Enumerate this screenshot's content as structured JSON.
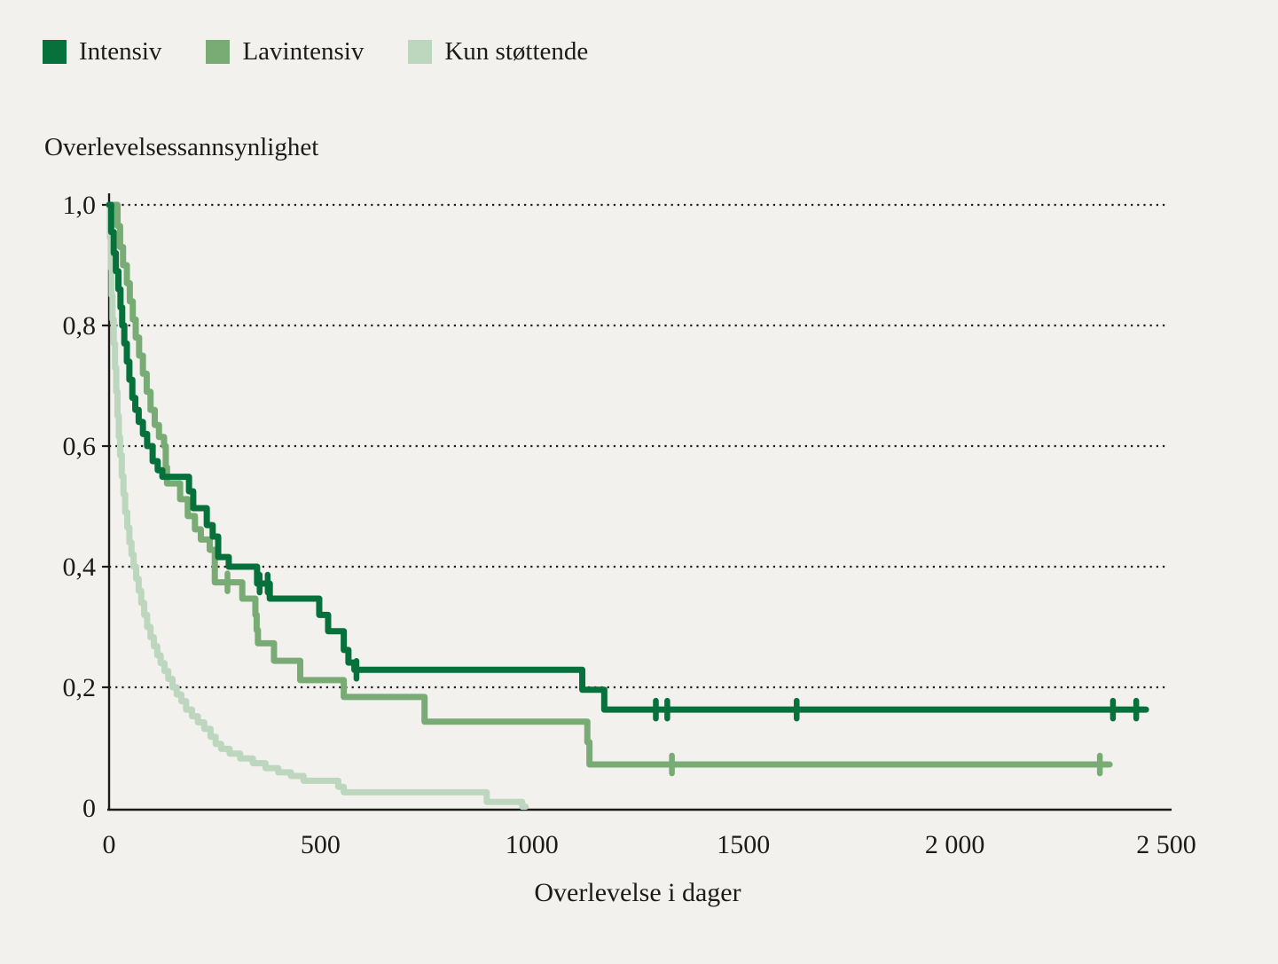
{
  "page": {
    "background": "#f2f1ee",
    "text_color": "#1b1b19"
  },
  "legend": {
    "items": [
      {
        "label": "Intensiv",
        "color": "#06713a"
      },
      {
        "label": "Lavintensiv",
        "color": "#79ab75"
      },
      {
        "label": "Kun støttende",
        "color": "#bcd7bd"
      }
    ]
  },
  "chart_data": {
    "type": "line",
    "subtype": "kaplan-meier-step-curve",
    "title": "Overlevelsessannsynlighet",
    "xlabel": "Overlevelse i dager",
    "ylabel": "Overlevelsessannsynlighet",
    "xlim": [
      0,
      2500
    ],
    "ylim": [
      0,
      1
    ],
    "grid": "horizontal-dotted",
    "legend_position": "top-left",
    "axis_color": "#1b1b19",
    "x_ticks": [
      {
        "value": 0,
        "label": "0"
      },
      {
        "value": 500,
        "label": "500"
      },
      {
        "value": 1000,
        "label": "1000"
      },
      {
        "value": 1500,
        "label": "1500"
      },
      {
        "value": 2000,
        "label": "2 000"
      },
      {
        "value": 2500,
        "label": "2 500"
      }
    ],
    "y_ticks": [
      {
        "value": 1.0,
        "label": "1,0"
      },
      {
        "value": 0.8,
        "label": "0,8"
      },
      {
        "value": 0.6,
        "label": "0,6"
      },
      {
        "value": 0.4,
        "label": "0,4"
      },
      {
        "value": 0.2,
        "label": "0,2"
      },
      {
        "value": 0,
        "label": "0"
      }
    ],
    "series": [
      {
        "name": "Kun støttende",
        "color": "#bcd7bd",
        "end_day": 985,
        "points": [
          [
            0,
            1.0
          ],
          [
            2,
            0.945
          ],
          [
            4,
            0.895
          ],
          [
            6,
            0.85
          ],
          [
            8,
            0.81
          ],
          [
            11,
            0.77
          ],
          [
            14,
            0.73
          ],
          [
            17,
            0.69
          ],
          [
            20,
            0.65
          ],
          [
            23,
            0.615
          ],
          [
            26,
            0.585
          ],
          [
            30,
            0.55
          ],
          [
            34,
            0.52
          ],
          [
            38,
            0.49
          ],
          [
            43,
            0.465
          ],
          [
            48,
            0.44
          ],
          [
            53,
            0.42
          ],
          [
            58,
            0.4
          ],
          [
            64,
            0.38
          ],
          [
            70,
            0.36
          ],
          [
            76,
            0.34
          ],
          [
            83,
            0.32
          ],
          [
            90,
            0.3
          ],
          [
            98,
            0.283
          ],
          [
            106,
            0.268
          ],
          [
            114,
            0.253
          ],
          [
            122,
            0.24
          ],
          [
            131,
            0.227
          ],
          [
            140,
            0.214
          ],
          [
            150,
            0.2
          ],
          [
            160,
            0.188
          ],
          [
            171,
            0.177
          ],
          [
            182,
            0.163
          ],
          [
            196,
            0.152
          ],
          [
            210,
            0.142
          ],
          [
            225,
            0.131
          ],
          [
            240,
            0.118
          ],
          [
            252,
            0.106
          ],
          [
            265,
            0.098
          ],
          [
            285,
            0.09
          ],
          [
            310,
            0.082
          ],
          [
            340,
            0.074
          ],
          [
            370,
            0.066
          ],
          [
            400,
            0.059
          ],
          [
            430,
            0.053
          ],
          [
            460,
            0.045
          ],
          [
            542,
            0.035
          ],
          [
            555,
            0.026
          ],
          [
            893,
            0.01
          ],
          [
            977,
            0.002
          ]
        ],
        "censor_marks": []
      },
      {
        "name": "Lavintensiv",
        "color": "#79ab75",
        "end_day": 2366,
        "points": [
          [
            0,
            1.0
          ],
          [
            20,
            0.965
          ],
          [
            26,
            0.93
          ],
          [
            33,
            0.9
          ],
          [
            42,
            0.87
          ],
          [
            49,
            0.84
          ],
          [
            56,
            0.81
          ],
          [
            63,
            0.78
          ],
          [
            71,
            0.75
          ],
          [
            80,
            0.72
          ],
          [
            89,
            0.69
          ],
          [
            98,
            0.66
          ],
          [
            108,
            0.635
          ],
          [
            118,
            0.615
          ],
          [
            130,
            0.6
          ],
          [
            134,
            0.565
          ],
          [
            137,
            0.538
          ],
          [
            168,
            0.512
          ],
          [
            186,
            0.484
          ],
          [
            203,
            0.462
          ],
          [
            217,
            0.445
          ],
          [
            238,
            0.428
          ],
          [
            250,
            0.374
          ],
          [
            315,
            0.347
          ],
          [
            346,
            0.32
          ],
          [
            349,
            0.295
          ],
          [
            352,
            0.273
          ],
          [
            390,
            0.244
          ],
          [
            452,
            0.212
          ],
          [
            555,
            0.184
          ],
          [
            746,
            0.143
          ],
          [
            1131,
            0.109
          ],
          [
            1136,
            0.072
          ]
        ],
        "censor_marks": [
          [
            280,
            0.374
          ],
          [
            1331,
            0.072
          ],
          [
            2343,
            0.072
          ]
        ]
      },
      {
        "name": "Intensiv",
        "color": "#06713a",
        "end_day": 2452,
        "points": [
          [
            0,
            1.0
          ],
          [
            5,
            0.955
          ],
          [
            11,
            0.92
          ],
          [
            16,
            0.89
          ],
          [
            22,
            0.86
          ],
          [
            27,
            0.83
          ],
          [
            31,
            0.8
          ],
          [
            36,
            0.77
          ],
          [
            42,
            0.74
          ],
          [
            48,
            0.71
          ],
          [
            55,
            0.68
          ],
          [
            62,
            0.66
          ],
          [
            70,
            0.64
          ],
          [
            80,
            0.62
          ],
          [
            90,
            0.6
          ],
          [
            103,
            0.575
          ],
          [
            115,
            0.56
          ],
          [
            126,
            0.549
          ],
          [
            189,
            0.525
          ],
          [
            199,
            0.497
          ],
          [
            231,
            0.469
          ],
          [
            245,
            0.45
          ],
          [
            258,
            0.416
          ],
          [
            283,
            0.4
          ],
          [
            350,
            0.372
          ],
          [
            380,
            0.347
          ],
          [
            497,
            0.32
          ],
          [
            518,
            0.293
          ],
          [
            555,
            0.262
          ],
          [
            566,
            0.241
          ],
          [
            580,
            0.229
          ],
          [
            1119,
            0.196
          ],
          [
            1171,
            0.163
          ]
        ],
        "censor_marks": [
          [
            356,
            0.372
          ],
          [
            375,
            0.372
          ],
          [
            585,
            0.229
          ],
          [
            1293,
            0.163
          ],
          [
            1320,
            0.163
          ],
          [
            1626,
            0.163
          ],
          [
            2374,
            0.163
          ],
          [
            2429,
            0.163
          ]
        ]
      }
    ]
  }
}
